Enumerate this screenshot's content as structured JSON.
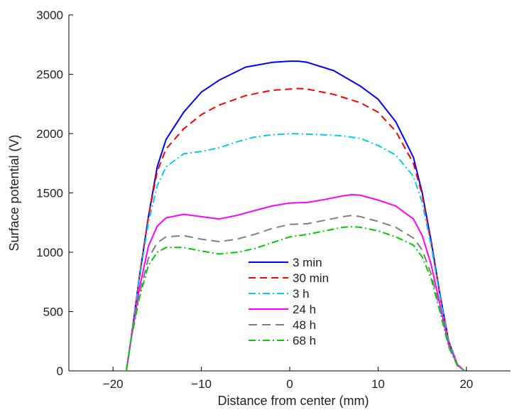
{
  "chart_data": {
    "type": "line",
    "title": "",
    "xlabel": "Distance from center (mm)",
    "ylabel": "Surface potential (V)",
    "xlim": [
      -25,
      25
    ],
    "ylim": [
      0,
      3000
    ],
    "xticks": [
      -20,
      -10,
      0,
      10,
      20
    ],
    "yticks": [
      0,
      500,
      1000,
      1500,
      2000,
      2500,
      3000
    ],
    "legend_position": "bottom-center",
    "series": [
      {
        "name": "3 min",
        "color": "#0000ff",
        "dash": "solid",
        "x": [
          -18.5,
          -18,
          -17,
          -16,
          -15,
          -14,
          -12,
          -10,
          -8,
          -5,
          -2,
          0,
          1,
          2,
          5,
          8,
          10,
          12,
          14,
          15,
          16,
          17,
          18,
          19,
          19.8
        ],
        "y": [
          0,
          250,
          800,
          1300,
          1720,
          1950,
          2180,
          2350,
          2450,
          2560,
          2600,
          2610,
          2610,
          2600,
          2530,
          2400,
          2290,
          2100,
          1800,
          1500,
          1100,
          650,
          250,
          50,
          0
        ]
      },
      {
        "name": "30 min",
        "color": "#ff0000",
        "dash": "10,6",
        "x": [
          -18.5,
          -18,
          -17,
          -16,
          -15,
          -14,
          -12,
          -10,
          -8,
          -5,
          -2,
          0,
          1,
          2,
          5,
          8,
          10,
          12,
          14,
          15,
          16,
          17,
          18,
          19,
          19.8
        ],
        "y": [
          0,
          250,
          800,
          1300,
          1680,
          1870,
          2040,
          2160,
          2240,
          2320,
          2365,
          2375,
          2380,
          2375,
          2330,
          2260,
          2180,
          2020,
          1750,
          1480,
          1080,
          640,
          240,
          50,
          0
        ]
      },
      {
        "name": "3 h",
        "color": "#00ccee",
        "dash": "10,4,2,4",
        "x": [
          -18.5,
          -18,
          -17,
          -16,
          -15,
          -14,
          -12,
          -10,
          -8,
          -6,
          -4,
          -2,
          0,
          2,
          4,
          6,
          8,
          10,
          12,
          14,
          15,
          16,
          17,
          18,
          19,
          19.8
        ],
        "y": [
          0,
          250,
          780,
          1250,
          1560,
          1720,
          1830,
          1850,
          1880,
          1930,
          1970,
          1990,
          2000,
          1995,
          1990,
          1980,
          1960,
          1900,
          1820,
          1640,
          1420,
          1060,
          630,
          240,
          50,
          0
        ]
      },
      {
        "name": "24 h",
        "color": "#ff00ff",
        "dash": "solid",
        "x": [
          -18.5,
          -18,
          -17,
          -16,
          -15,
          -14,
          -12,
          -10,
          -8,
          -6,
          -4,
          -2,
          0,
          2,
          4,
          6,
          7,
          8,
          10,
          12,
          14,
          15,
          16,
          17,
          18,
          19,
          19.8
        ],
        "y": [
          0,
          250,
          700,
          1050,
          1220,
          1290,
          1320,
          1300,
          1280,
          1310,
          1350,
          1390,
          1415,
          1420,
          1445,
          1475,
          1485,
          1480,
          1440,
          1390,
          1280,
          1140,
          900,
          560,
          220,
          50,
          0
        ]
      },
      {
        "name": "48 h",
        "color": "#808080",
        "dash": "12,7",
        "x": [
          -18.5,
          -18,
          -17,
          -16,
          -15,
          -14,
          -12,
          -10,
          -8,
          -6,
          -4,
          -2,
          0,
          2,
          4,
          6,
          7,
          8,
          10,
          12,
          14,
          15,
          16,
          17,
          18,
          19,
          19.8
        ],
        "y": [
          0,
          250,
          650,
          950,
          1080,
          1130,
          1140,
          1110,
          1090,
          1110,
          1150,
          1200,
          1235,
          1240,
          1270,
          1300,
          1310,
          1300,
          1260,
          1210,
          1120,
          1020,
          820,
          520,
          210,
          45,
          0
        ]
      },
      {
        "name": "68 h",
        "color": "#00cc00",
        "dash": "10,4,2,4",
        "x": [
          -18.5,
          -18,
          -17,
          -16,
          -15,
          -14,
          -12,
          -10,
          -8,
          -6,
          -4,
          -2,
          0,
          2,
          4,
          6,
          7,
          8,
          10,
          12,
          14,
          15,
          16,
          17,
          18,
          19,
          19.8
        ],
        "y": [
          0,
          250,
          620,
          890,
          1000,
          1040,
          1040,
          1010,
          985,
          1000,
          1030,
          1080,
          1130,
          1150,
          1180,
          1210,
          1215,
          1210,
          1180,
          1130,
          1060,
          960,
          780,
          500,
          200,
          40,
          0
        ]
      }
    ]
  }
}
